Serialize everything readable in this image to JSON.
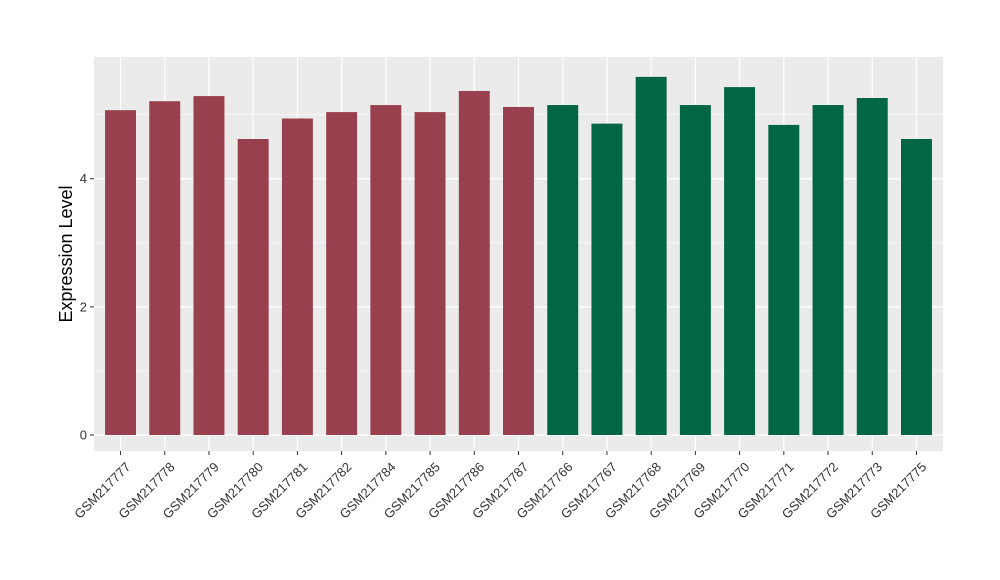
{
  "chart_data": {
    "type": "bar",
    "title": "",
    "xlabel": "",
    "ylabel": "Expression Level",
    "ylim": [
      -0.25,
      5.9
    ],
    "yticks": [
      0,
      2,
      4
    ],
    "grid": true,
    "legend": "none",
    "categories": [
      "GSM217777",
      "GSM217778",
      "GSM217779",
      "GSM217780",
      "GSM217781",
      "GSM217782",
      "GSM217784",
      "GSM217785",
      "GSM217786",
      "GSM217787",
      "GSM217766",
      "GSM217767",
      "GSM217768",
      "GSM217769",
      "GSM217770",
      "GSM217771",
      "GSM217772",
      "GSM217773",
      "GSM217775"
    ],
    "values": [
      5.07,
      5.21,
      5.29,
      4.62,
      4.94,
      5.04,
      5.15,
      5.04,
      5.37,
      5.12,
      5.15,
      4.86,
      5.59,
      5.15,
      5.43,
      4.84,
      5.15,
      5.26,
      4.62
    ],
    "groups": [
      "g1",
      "g1",
      "g1",
      "g1",
      "g1",
      "g1",
      "g1",
      "g1",
      "g1",
      "g1",
      "g2",
      "g2",
      "g2",
      "g2",
      "g2",
      "g2",
      "g2",
      "g2",
      "g2"
    ],
    "colors": {
      "g1": "#98404e",
      "g2": "#006643"
    },
    "panel_background": "#ebebeb",
    "gridline_color": "#ffffff"
  }
}
